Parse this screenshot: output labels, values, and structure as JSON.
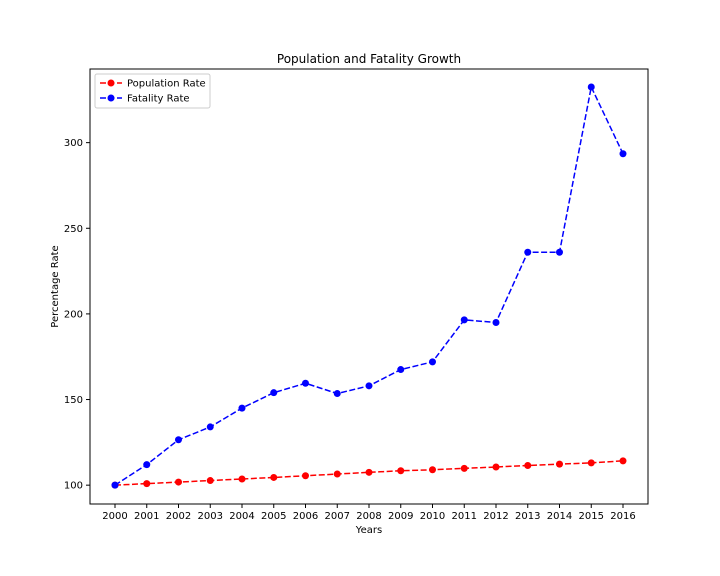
{
  "chart_data": {
    "type": "line",
    "title": "Population and Fatality Growth",
    "xlabel": "Years",
    "ylabel": "Percentage Rate",
    "categories": [
      "2000",
      "2001",
      "2002",
      "2003",
      "2004",
      "2005",
      "2006",
      "2007",
      "2008",
      "2009",
      "2010",
      "2011",
      "2012",
      "2013",
      "2014",
      "2015",
      "2016"
    ],
    "yticks": [
      100,
      150,
      200,
      250,
      300
    ],
    "ylim": [
      89,
      343
    ],
    "grid": false,
    "legend_position": "top-left",
    "series": [
      {
        "name": "Population Rate",
        "color": "#ff0000",
        "line_style": "dashed",
        "marker": "circle",
        "values": [
          100,
          100.9,
          101.8,
          102.7,
          103.6,
          104.5,
          105.5,
          106.5,
          107.5,
          108.4,
          109.0,
          109.8,
          110.6,
          111.5,
          112.3,
          113.0,
          114.2
        ]
      },
      {
        "name": "Fatality Rate",
        "color": "#0000ff",
        "line_style": "dashed",
        "marker": "circle",
        "values": [
          100,
          112,
          126.5,
          134,
          145,
          154,
          159.5,
          153.5,
          158,
          167.5,
          172,
          196.5,
          195,
          236,
          236,
          332.5,
          293.5
        ]
      }
    ]
  }
}
